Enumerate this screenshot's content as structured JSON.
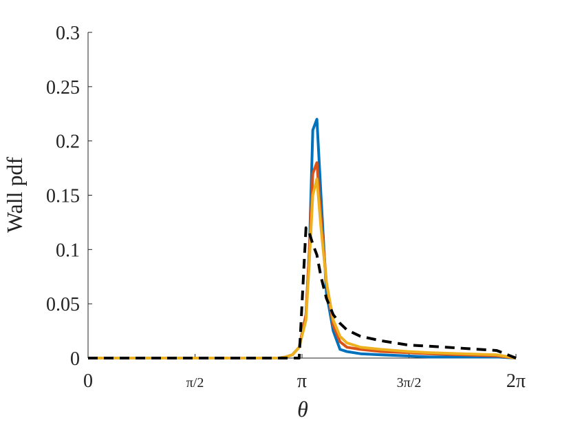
{
  "chart_data": {
    "type": "line",
    "xlabel": "θ",
    "ylabel": "Wall pdf",
    "x": [
      0,
      0.5,
      1,
      1.5,
      2,
      2.5,
      2.8,
      2.9,
      3.0,
      3.1,
      3.2,
      3.25,
      3.3,
      3.36,
      3.42,
      3.5,
      3.6,
      3.7,
      3.8,
      4.0,
      4.3,
      4.7,
      5.0,
      5.5,
      6.0,
      6.2832
    ],
    "series": [
      {
        "color": "#000000",
        "dashed": true,
        "values": [
          0,
          0,
          0,
          0,
          0,
          0,
          0,
          0,
          0,
          0,
          0.12,
          0.115,
          0.105,
          0.095,
          0.075,
          0.055,
          0.04,
          0.032,
          0.026,
          0.02,
          0.016,
          0.012,
          0.011,
          0.009,
          0.007,
          0
        ]
      },
      {
        "color": "#0072BD",
        "values": [
          0,
          0,
          0,
          0,
          0,
          0,
          0,
          0.001,
          0.003,
          0.01,
          0.04,
          0.1,
          0.21,
          0.22,
          0.15,
          0.06,
          0.025,
          0.008,
          0.006,
          0.004,
          0.003,
          0.002,
          0.001,
          0.001,
          0.001,
          0
        ]
      },
      {
        "color": "#D95319",
        "values": [
          0,
          0,
          0,
          0,
          0,
          0,
          0,
          0.001,
          0.003,
          0.01,
          0.04,
          0.1,
          0.17,
          0.18,
          0.13,
          0.07,
          0.03,
          0.015,
          0.01,
          0.008,
          0.006,
          0.005,
          0.004,
          0.003,
          0.002,
          0
        ]
      },
      {
        "color": "#EDB120",
        "values": [
          0,
          0,
          0,
          0,
          0,
          0,
          0,
          0.001,
          0.003,
          0.01,
          0.035,
          0.09,
          0.15,
          0.165,
          0.12,
          0.07,
          0.035,
          0.02,
          0.014,
          0.01,
          0.008,
          0.006,
          0.005,
          0.004,
          0.003,
          0
        ]
      }
    ],
    "xlim": [
      0,
      6.2832
    ],
    "xticks": [
      0,
      {
        "value": 1.5708,
        "label": "π/2"
      },
      {
        "value": 3.1416,
        "label": "π"
      },
      {
        "value": 4.7124,
        "label": "3π/2"
      },
      {
        "value": 6.2832,
        "label": "2π"
      }
    ],
    "ylim": [
      0,
      0.3
    ],
    "yticks": [
      0,
      0.05,
      0.1,
      0.15,
      0.2,
      0.25,
      0.3
    ],
    "grid": false
  }
}
